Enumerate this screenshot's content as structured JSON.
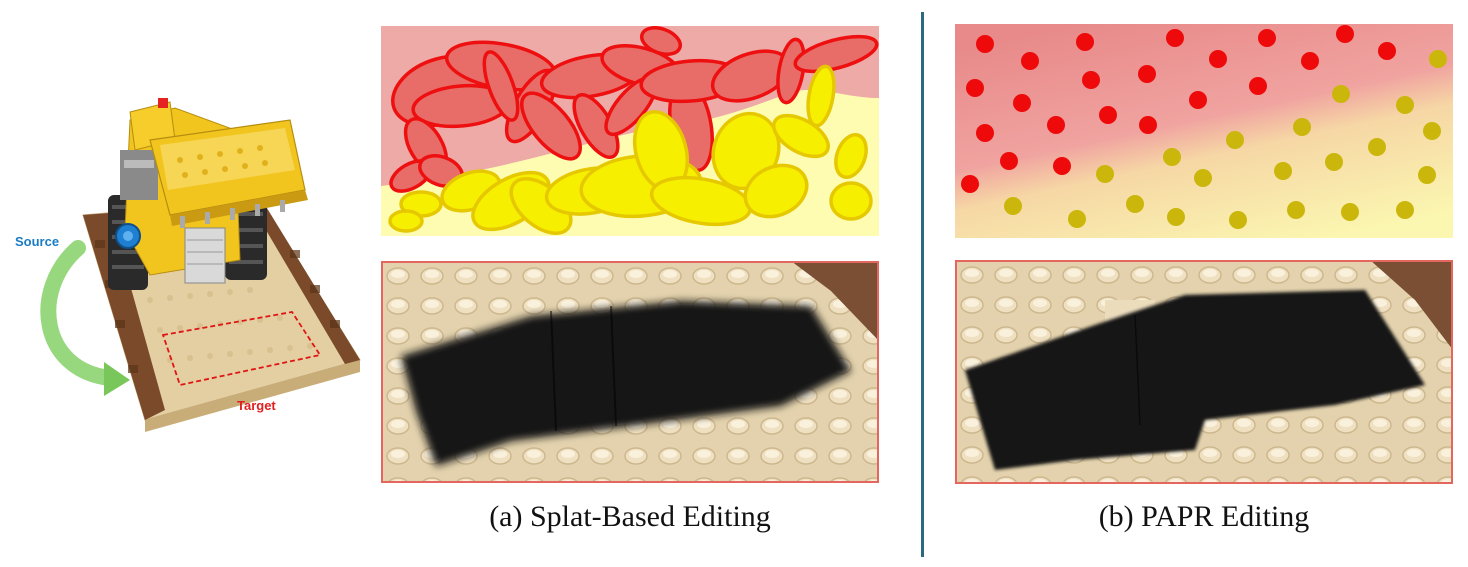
{
  "scene": {
    "source_label": "Source",
    "target_label": "Target"
  },
  "captions": {
    "splat": "(a) Splat-Based Editing",
    "papr": "(b) PAPR Editing"
  },
  "colors": {
    "red_region": "#e86d68",
    "yellow_region": "#fdfcb0",
    "red_outline": "#ee1010",
    "yellow_fill": "#f7ef00",
    "point_red": "#ee0a0a",
    "point_yellow": "#cbb70b",
    "divider": "#2b6a80",
    "panel_border": "#e4675f"
  }
}
